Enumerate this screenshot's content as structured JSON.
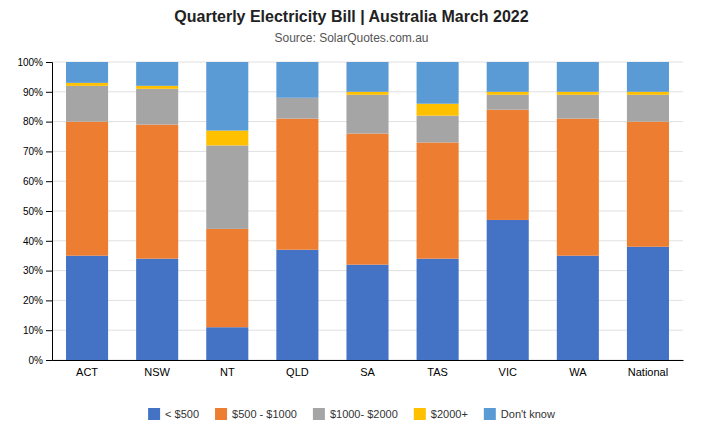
{
  "chart_data": {
    "type": "bar",
    "stacked": true,
    "title": "Quarterly Electricity Bill | Australia March 2022",
    "subtitle": "Source: SolarQuotes.com.au",
    "categories": [
      "ACT",
      "NSW",
      "NT",
      "QLD",
      "SA",
      "TAS",
      "VIC",
      "WA",
      "National"
    ],
    "series": [
      {
        "name": "< $500",
        "color": "#4472C4",
        "values": [
          35,
          34,
          11,
          37,
          32,
          34,
          47,
          35,
          38
        ]
      },
      {
        "name": "$500 - $1000",
        "color": "#ED7D31",
        "values": [
          45,
          45,
          33,
          44,
          44,
          39,
          37,
          46,
          42
        ]
      },
      {
        "name": "$1000- $2000",
        "color": "#A5A5A5",
        "values": [
          12,
          12,
          28,
          7,
          13,
          9,
          5,
          8,
          9
        ]
      },
      {
        "name": "$2000+",
        "color": "#FFC000",
        "values": [
          1,
          1,
          5,
          0,
          1,
          4,
          1,
          1,
          1
        ]
      },
      {
        "name": "Don't know",
        "color": "#5B9BD5",
        "values": [
          7,
          8,
          23,
          12,
          10,
          14,
          10,
          10,
          10
        ]
      }
    ],
    "ylim": [
      0,
      100
    ],
    "yticks": [
      {
        "value": 0,
        "label": "0%"
      },
      {
        "value": 10,
        "label": "10%"
      },
      {
        "value": 20,
        "label": "20%"
      },
      {
        "value": 30,
        "label": "30%"
      },
      {
        "value": 40,
        "label": "40%"
      },
      {
        "value": 50,
        "label": "50%"
      },
      {
        "value": 60,
        "label": "60%"
      },
      {
        "value": 70,
        "label": "70%"
      },
      {
        "value": 80,
        "label": "80%"
      },
      {
        "value": 90,
        "label": "90%"
      },
      {
        "value": 100,
        "label": "100%"
      }
    ],
    "grid": true,
    "legend": "bottom"
  }
}
